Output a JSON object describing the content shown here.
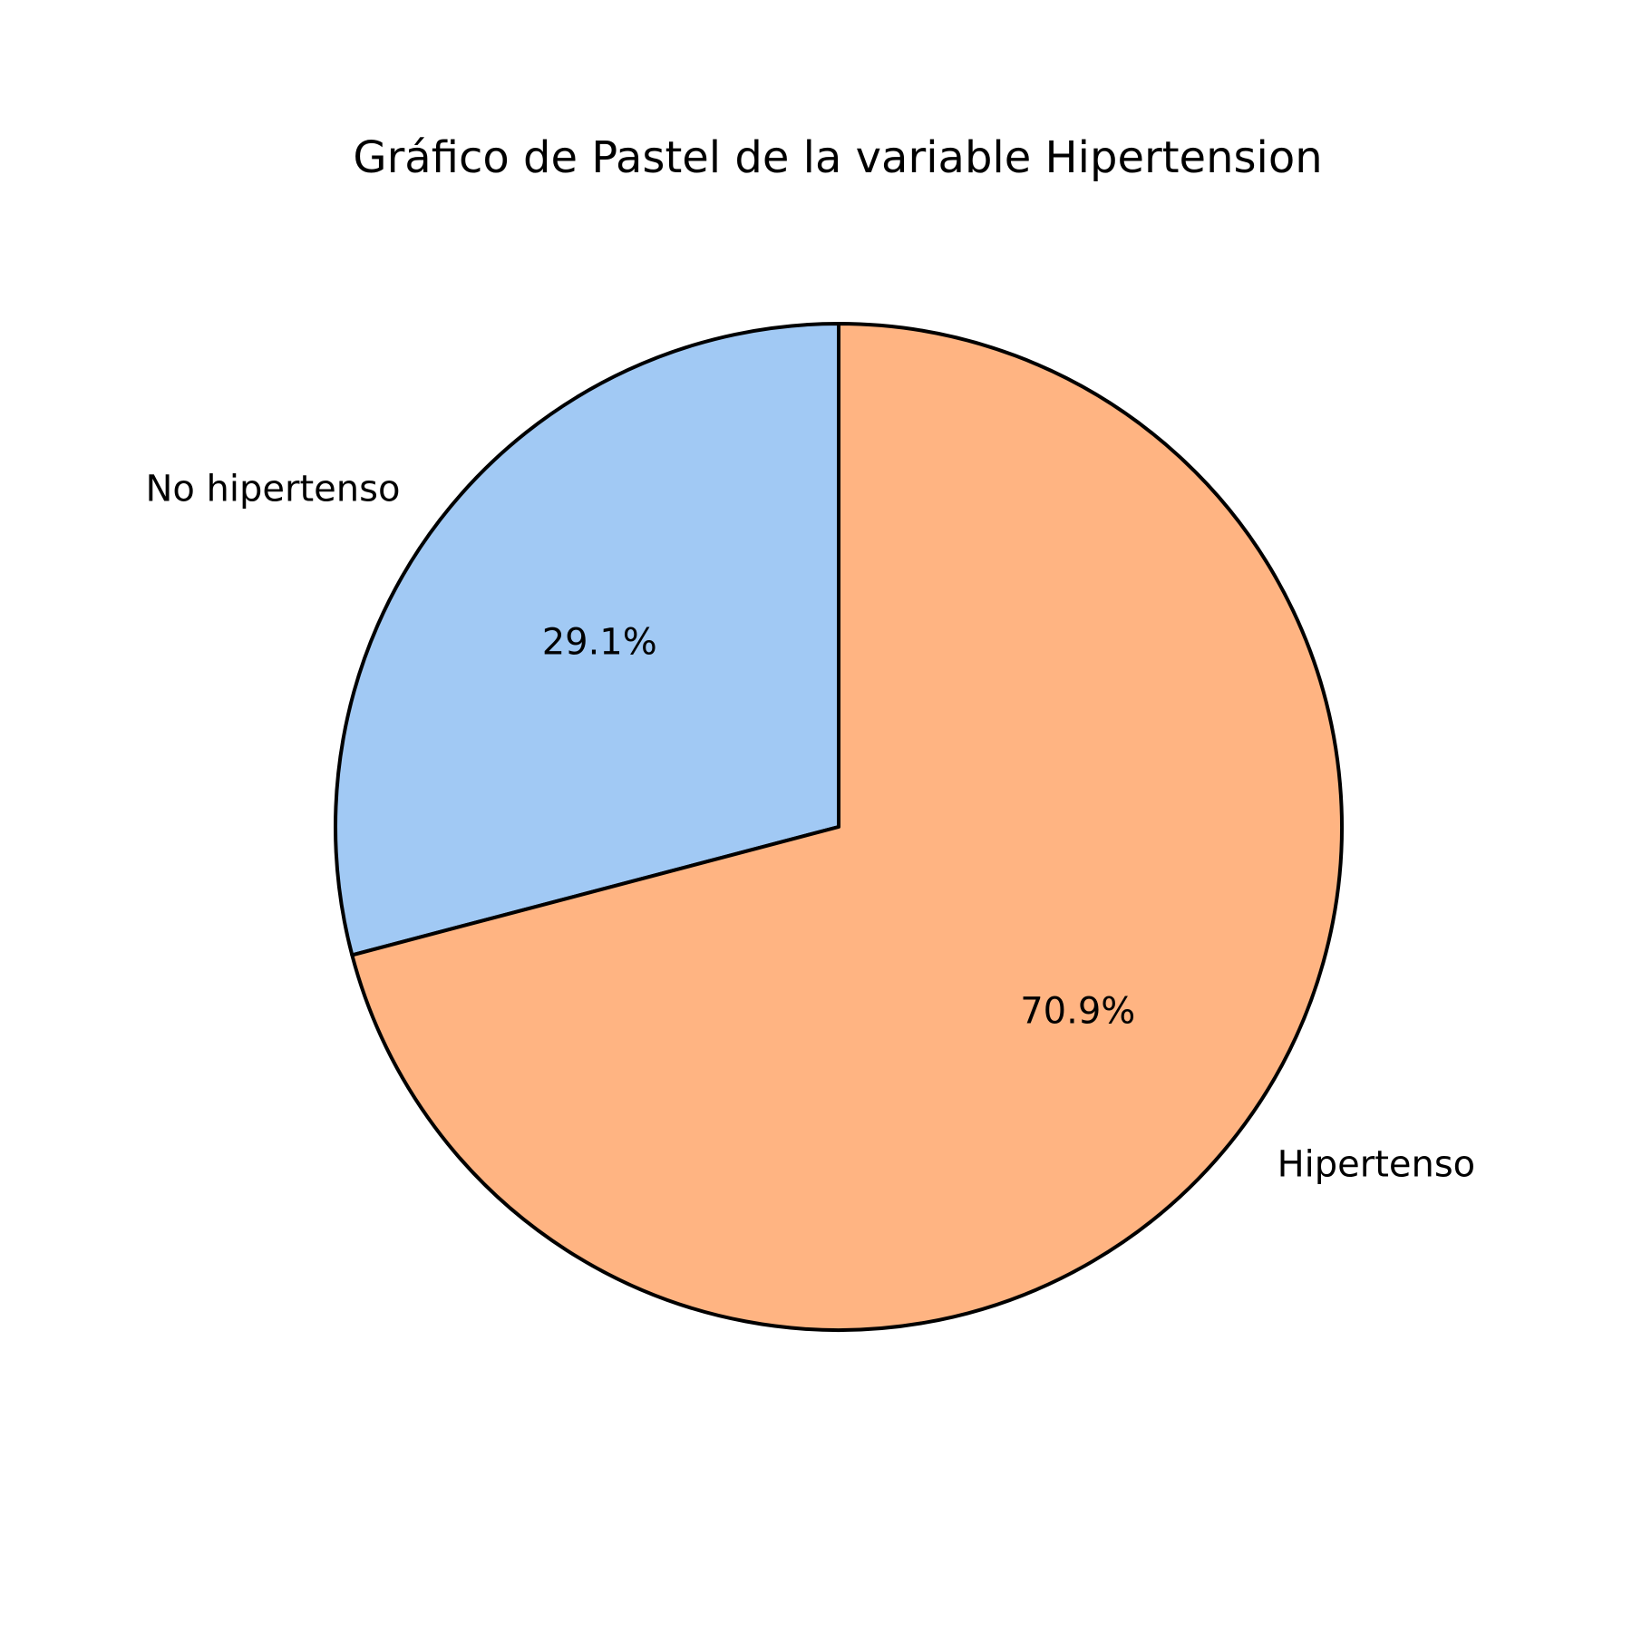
{
  "chart_data": {
    "type": "pie",
    "title": "Gráfico de Pastel de la variable Hipertension",
    "start_angle_deg": 90,
    "direction": "counterclockwise",
    "edge_color": "#000000",
    "slices": [
      {
        "label": "No hipertenso",
        "value": 29.1,
        "pct_label": "29.1%",
        "color": "#a1c9f4"
      },
      {
        "label": "Hipertenso",
        "value": 70.9,
        "pct_label": "70.9%",
        "color": "#ffb482"
      }
    ]
  }
}
